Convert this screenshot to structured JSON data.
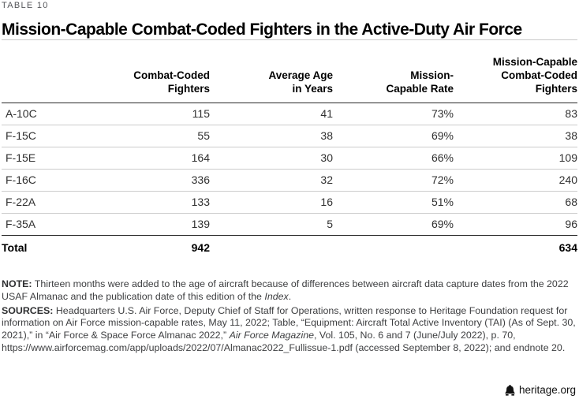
{
  "eyebrow": "TABLE 10",
  "title": "Mission-Capable Combat-Coded Fighters in the Active-Duty Air Force",
  "chart_data": {
    "type": "table",
    "columns": [
      {
        "key": "aircraft",
        "label": ""
      },
      {
        "key": "combat_coded",
        "label": "Combat-Coded\nFighters"
      },
      {
        "key": "avg_age",
        "label": "Average Age\nin Years"
      },
      {
        "key": "mc_rate",
        "label": "Mission-\nCapable Rate"
      },
      {
        "key": "mc_fighters",
        "label": "Mission-Capable\nCombat-Coded\nFighters"
      }
    ],
    "rows": [
      {
        "aircraft": "A-10C",
        "combat_coded": "115",
        "avg_age": "41",
        "mc_rate": "73%",
        "mc_fighters": "83"
      },
      {
        "aircraft": "F-15C",
        "combat_coded": "55",
        "avg_age": "38",
        "mc_rate": "69%",
        "mc_fighters": "38"
      },
      {
        "aircraft": "F-15E",
        "combat_coded": "164",
        "avg_age": "30",
        "mc_rate": "66%",
        "mc_fighters": "109"
      },
      {
        "aircraft": "F-16C",
        "combat_coded": "336",
        "avg_age": "32",
        "mc_rate": "72%",
        "mc_fighters": "240"
      },
      {
        "aircraft": "F-22A",
        "combat_coded": "133",
        "avg_age": "16",
        "mc_rate": "51%",
        "mc_fighters": "68"
      },
      {
        "aircraft": "F-35A",
        "combat_coded": "139",
        "avg_age": "5",
        "mc_rate": "69%",
        "mc_fighters": "96"
      }
    ],
    "total_row": {
      "aircraft": "Total",
      "combat_coded": "942",
      "avg_age": "",
      "mc_rate": "",
      "mc_fighters": "634"
    }
  },
  "note_segments": [
    {
      "text": "NOTE:",
      "bold": true
    },
    {
      "text": " Thirteen months were added to the age of aircraft because of differences between aircraft data capture dates from the 2022 USAF Almanac and the publication date of this edition of the "
    },
    {
      "text": "Index",
      "italic": true
    },
    {
      "text": "."
    }
  ],
  "sources_segments": [
    {
      "text": "SOURCES:",
      "bold": true
    },
    {
      "text": " Headquarters U.S. Air Force, Deputy Chief of Staff for Operations, written response to Heritage Foundation request for information on Air Force mission-capable rates, May 11, 2022; Table, “Equipment: Aircraft Total Active Inventory (TAI) (As of Sept. 30, 2021),” in “Air Force & Space Force Almanac 2022,” "
    },
    {
      "text": "Air Force Magazine",
      "italic": true
    },
    {
      "text": ", Vol. 105, No. 6 and 7 (June/July 2022), p. 70, https://www.airforcemag.com/app/uploads/2022/07/Almanac2022_Fullissue-1.pdf (accessed September 8, 2022); and endnote 20."
    }
  ],
  "footer": {
    "site": "heritage.org",
    "icon": "liberty-bell-icon"
  },
  "colors": {
    "rule_dark": "#2b2b2b",
    "rule_light": "#cccccc",
    "eyebrow_gray": "#55565a",
    "note_gray": "#3d3e40"
  }
}
